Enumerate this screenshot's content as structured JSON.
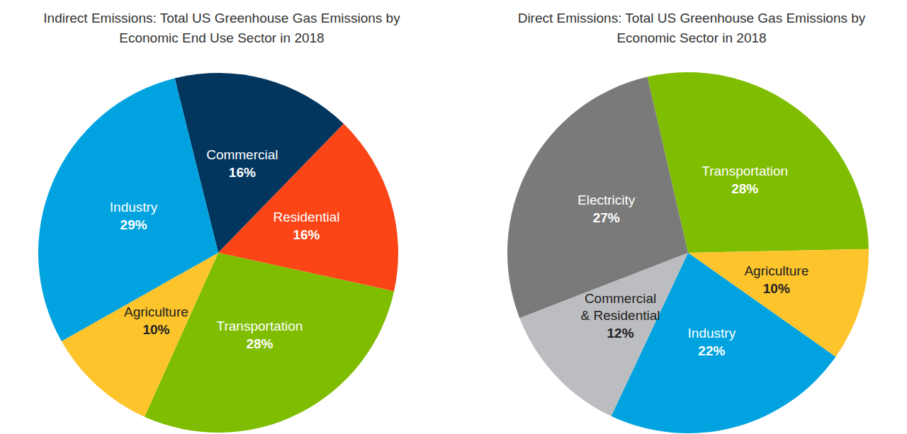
{
  "chart_data": [
    {
      "type": "pie",
      "title": "Indirect Emissions: Total US Greenhouse Gas Emissions by\nEconomic End Use Sector in 2018",
      "categories": [
        "Commercial",
        "Residential",
        "Transportation",
        "Agriculture",
        "Industry"
      ],
      "values": [
        16,
        16,
        28,
        10,
        29
      ],
      "value_labels": [
        "16%",
        "16%",
        "28%",
        "10%",
        "29%"
      ],
      "colors": [
        "#02365f",
        "#fc4516",
        "#7fbd00",
        "#fdc42b",
        "#00a3e0"
      ],
      "data_labels": true
    },
    {
      "type": "pie",
      "title": "Direct Emissions: Total US Greenhouse Gas Emissions by\nEconomic Sector in 2018",
      "categories": [
        "Transportation",
        "Agriculture",
        "Industry",
        "Commercial\n& Residential",
        "Electricity"
      ],
      "values": [
        28,
        10,
        22,
        12,
        27
      ],
      "value_labels": [
        "28%",
        "10%",
        "22%",
        "12%",
        "27%"
      ],
      "colors": [
        "#7fbd00",
        "#fdc42b",
        "#00a3e0",
        "#bcbdc0",
        "#7a7a7a"
      ],
      "data_labels": true
    }
  ]
}
